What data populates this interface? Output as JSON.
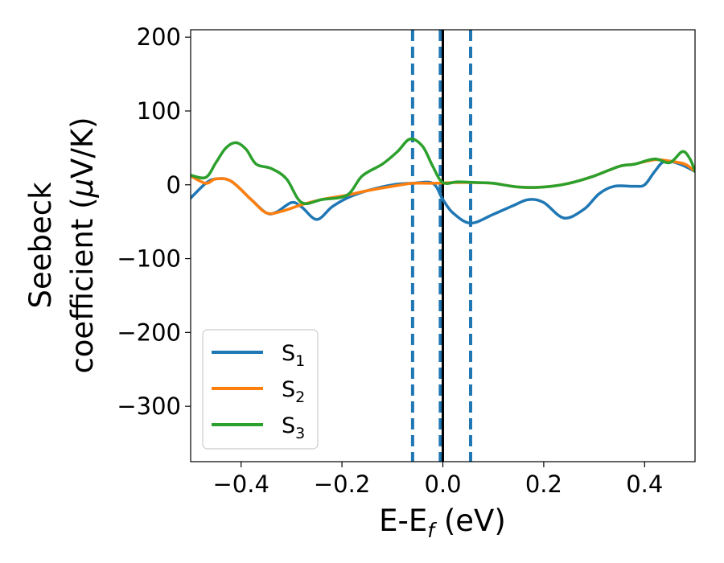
{
  "chart_data": {
    "type": "line",
    "title": "",
    "xlabel": {
      "main": "E-E",
      "sub": "f",
      "unit": " (eV)"
    },
    "ylabel": {
      "line1": "Seebeck",
      "line2": "coefficient  (",
      "mu": "μ",
      "unit": "V/K)"
    },
    "xlim": [
      -0.5,
      0.5
    ],
    "ylim": [
      -375,
      210
    ],
    "xticks": [
      {
        "value": -0.4,
        "label": "−0.4"
      },
      {
        "value": -0.2,
        "label": "−0.2"
      },
      {
        "value": 0.0,
        "label": "0.0"
      },
      {
        "value": 0.2,
        "label": "0.2"
      },
      {
        "value": 0.4,
        "label": "0.4"
      }
    ],
    "yticks": [
      {
        "value": 200,
        "label": "200"
      },
      {
        "value": 100,
        "label": "100"
      },
      {
        "value": 0,
        "label": "0"
      },
      {
        "value": -100,
        "label": "−100"
      },
      {
        "value": -200,
        "label": "−200"
      },
      {
        "value": -300,
        "label": "−300"
      }
    ],
    "grid": false,
    "legend_position": "lower-left",
    "vlines": [
      {
        "x": -0.06,
        "style": "dashed",
        "color": "#1f77b4"
      },
      {
        "x": -0.005,
        "style": "dashed",
        "color": "#1f77b4"
      },
      {
        "x": 0.055,
        "style": "dashed",
        "color": "#1f77b4"
      },
      {
        "x": 0.0,
        "style": "solid",
        "color": "#000000"
      }
    ],
    "series": [
      {
        "name": "S",
        "sub": "1",
        "color": "#1f77b4",
        "points": [
          [
            -0.5,
            -18
          ],
          [
            -0.47,
            2
          ],
          [
            -0.45,
            8
          ],
          [
            -0.42,
            5
          ],
          [
            -0.38,
            -20
          ],
          [
            -0.35,
            -38
          ],
          [
            -0.33,
            -37
          ],
          [
            -0.3,
            -24
          ],
          [
            -0.28,
            -30
          ],
          [
            -0.25,
            -47
          ],
          [
            -0.22,
            -30
          ],
          [
            -0.19,
            -18
          ],
          [
            -0.15,
            -8
          ],
          [
            -0.1,
            0
          ],
          [
            -0.06,
            2
          ],
          [
            -0.02,
            2
          ],
          [
            0.0,
            -20
          ],
          [
            0.02,
            -38
          ],
          [
            0.055,
            -52
          ],
          [
            0.1,
            -40
          ],
          [
            0.14,
            -28
          ],
          [
            0.17,
            -20
          ],
          [
            0.2,
            -24
          ],
          [
            0.24,
            -45
          ],
          [
            0.28,
            -33
          ],
          [
            0.31,
            -12
          ],
          [
            0.34,
            -2
          ],
          [
            0.38,
            -2
          ],
          [
            0.4,
            0
          ],
          [
            0.42,
            18
          ],
          [
            0.44,
            32
          ],
          [
            0.47,
            28
          ],
          [
            0.5,
            18
          ]
        ]
      },
      {
        "name": "S",
        "sub": "2",
        "color": "#ff7f0e",
        "points": [
          [
            -0.5,
            12
          ],
          [
            -0.47,
            2
          ],
          [
            -0.45,
            8
          ],
          [
            -0.42,
            5
          ],
          [
            -0.38,
            -20
          ],
          [
            -0.35,
            -38
          ],
          [
            -0.32,
            -36
          ],
          [
            -0.28,
            -27
          ],
          [
            -0.24,
            -20
          ],
          [
            -0.19,
            -14
          ],
          [
            -0.15,
            -8
          ],
          [
            -0.1,
            -2
          ],
          [
            -0.06,
            2
          ],
          [
            -0.02,
            2
          ],
          [
            0.02,
            3
          ],
          [
            0.06,
            3
          ],
          [
            0.1,
            2
          ],
          [
            0.15,
            -3
          ],
          [
            0.2,
            -3
          ],
          [
            0.25,
            2
          ],
          [
            0.3,
            12
          ],
          [
            0.35,
            25
          ],
          [
            0.38,
            28
          ],
          [
            0.42,
            34
          ],
          [
            0.45,
            32
          ],
          [
            0.48,
            28
          ],
          [
            0.5,
            18
          ]
        ]
      },
      {
        "name": "S",
        "sub": "3",
        "color": "#2ca02c",
        "points": [
          [
            -0.5,
            13
          ],
          [
            -0.47,
            10
          ],
          [
            -0.45,
            30
          ],
          [
            -0.43,
            50
          ],
          [
            -0.41,
            57
          ],
          [
            -0.39,
            48
          ],
          [
            -0.37,
            28
          ],
          [
            -0.34,
            22
          ],
          [
            -0.31,
            8
          ],
          [
            -0.28,
            -24
          ],
          [
            -0.24,
            -20
          ],
          [
            -0.19,
            -14
          ],
          [
            -0.16,
            12
          ],
          [
            -0.12,
            28
          ],
          [
            -0.09,
            45
          ],
          [
            -0.065,
            62
          ],
          [
            -0.04,
            52
          ],
          [
            -0.02,
            25
          ],
          [
            0.0,
            3
          ],
          [
            0.03,
            4
          ],
          [
            0.07,
            3
          ],
          [
            0.1,
            2
          ],
          [
            0.15,
            -3
          ],
          [
            0.2,
            -3
          ],
          [
            0.25,
            2
          ],
          [
            0.3,
            12
          ],
          [
            0.35,
            25
          ],
          [
            0.38,
            28
          ],
          [
            0.42,
            35
          ],
          [
            0.45,
            30
          ],
          [
            0.475,
            45
          ],
          [
            0.49,
            35
          ],
          [
            0.5,
            18
          ]
        ]
      }
    ]
  }
}
